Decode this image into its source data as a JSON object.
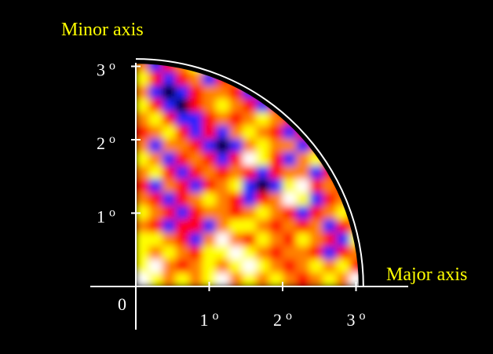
{
  "chart_data": {
    "type": "heatmap",
    "xlabel": "Major axis",
    "ylabel": "Minor axis",
    "origin_label": "0",
    "x_ticks": [
      {
        "value": 1,
        "label": "1",
        "unit": "o"
      },
      {
        "value": 2,
        "label": "2",
        "unit": "o"
      },
      {
        "value": 3,
        "label": "3",
        "unit": "o"
      }
    ],
    "y_ticks": [
      {
        "value": 1,
        "label": "1",
        "unit": "o"
      },
      {
        "value": 2,
        "label": "2",
        "unit": "o"
      },
      {
        "value": 3,
        "label": "3",
        "unit": "o"
      }
    ],
    "xlim": [
      0,
      3.1
    ],
    "ylim": [
      0,
      3.1
    ],
    "boundary_radius": 3.1,
    "colormap": [
      "#000000",
      "#2020ff",
      "#ff0000",
      "#ff8000",
      "#ffff00",
      "#ffffff"
    ],
    "grid": [
      [
        3,
        1,
        2,
        3,
        4,
        3,
        4,
        5,
        3,
        4,
        4,
        5,
        2,
        3,
        4,
        3,
        4
      ],
      [
        4,
        2,
        1,
        2,
        3,
        1,
        2,
        3,
        4,
        2,
        1,
        0,
        3,
        4,
        3,
        2,
        3
      ],
      [
        3,
        1,
        0,
        1,
        2,
        3,
        3,
        2,
        1,
        2,
        3,
        4,
        3,
        2,
        4,
        5,
        3
      ],
      [
        4,
        2,
        1,
        0,
        2,
        3,
        4,
        3,
        2,
        1,
        2,
        3,
        4,
        2,
        1,
        4,
        3
      ],
      [
        3,
        4,
        2,
        1,
        1,
        2,
        3,
        2,
        3,
        4,
        3,
        2,
        1,
        2,
        3,
        2,
        4
      ],
      [
        2,
        3,
        4,
        2,
        1,
        2,
        1,
        3,
        4,
        3,
        2,
        1,
        2,
        3,
        4,
        3,
        3
      ],
      [
        3,
        1,
        3,
        3,
        2,
        1,
        0,
        1,
        3,
        4,
        3,
        3,
        1,
        2,
        3,
        4,
        3
      ],
      [
        4,
        3,
        1,
        2,
        3,
        2,
        1,
        2,
        5,
        4,
        2,
        1,
        3,
        4,
        2,
        3,
        4
      ],
      [
        3,
        4,
        2,
        1,
        2,
        3,
        2,
        3,
        2,
        1,
        2,
        3,
        3,
        1,
        2,
        3,
        3
      ],
      [
        2,
        1,
        3,
        2,
        1,
        2,
        3,
        4,
        1,
        0,
        1,
        4,
        5,
        2,
        3,
        2,
        2
      ],
      [
        3,
        2,
        1,
        2,
        3,
        4,
        3,
        2,
        1,
        2,
        3,
        5,
        4,
        1,
        2,
        3,
        1
      ],
      [
        4,
        3,
        2,
        1,
        2,
        3,
        3,
        2,
        3,
        4,
        3,
        2,
        1,
        2,
        3,
        4,
        2
      ],
      [
        3,
        2,
        1,
        2,
        2,
        1,
        3,
        4,
        4,
        3,
        2,
        3,
        2,
        3,
        1,
        2,
        3
      ],
      [
        4,
        4,
        3,
        2,
        1,
        3,
        5,
        3,
        2,
        4,
        3,
        2,
        4,
        3,
        2,
        1,
        4
      ],
      [
        4,
        3,
        4,
        3,
        2,
        4,
        4,
        5,
        4,
        3,
        2,
        3,
        3,
        2,
        1,
        2,
        3
      ],
      [
        4,
        5,
        3,
        2,
        3,
        4,
        3,
        4,
        5,
        4,
        3,
        2,
        3,
        4,
        3,
        4,
        2
      ],
      [
        5,
        4,
        3,
        4,
        3,
        4,
        5,
        3,
        4,
        3,
        4,
        3,
        2,
        3,
        4,
        3,
        5
      ]
    ]
  }
}
